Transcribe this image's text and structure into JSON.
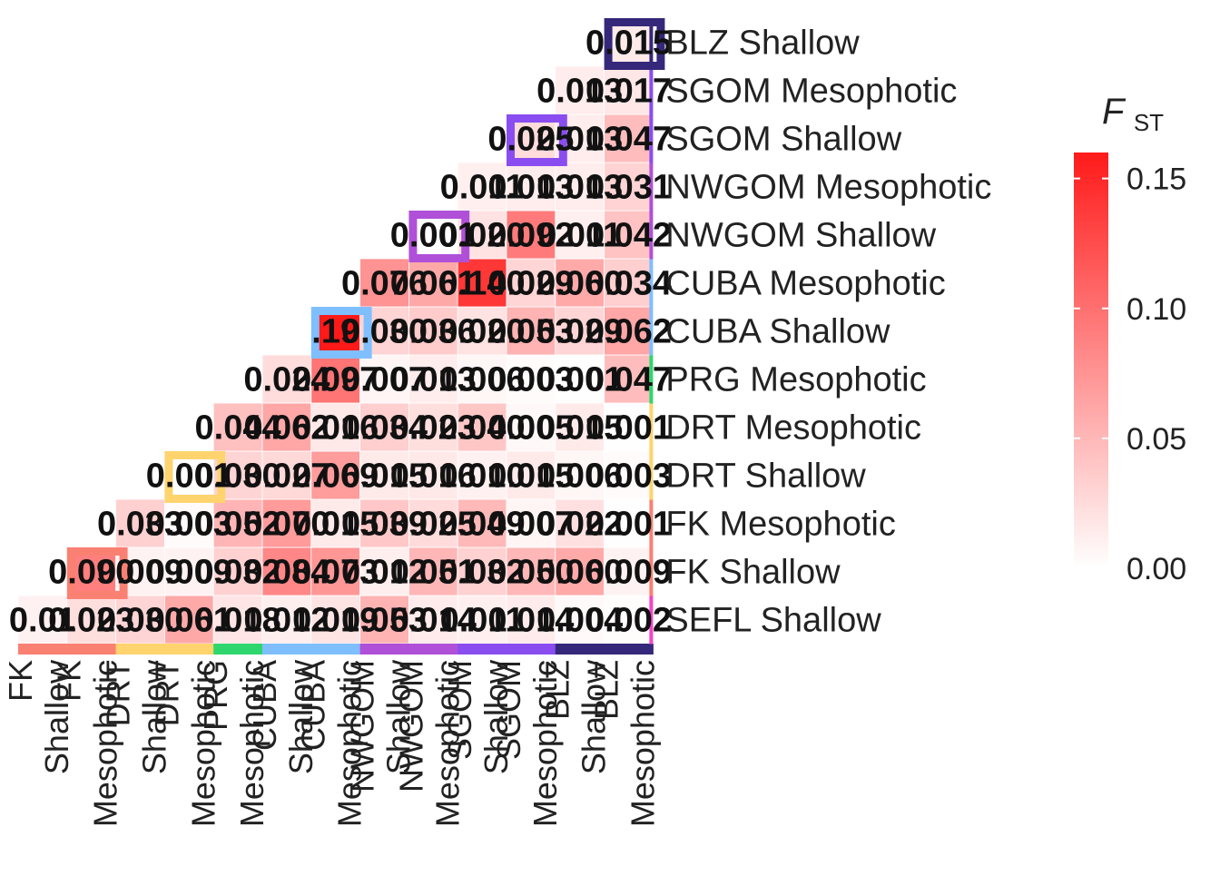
{
  "chart_data": {
    "type": "heatmap",
    "populations": [
      "SEFL Shallow",
      "FK Shallow",
      "FK Mesophotic",
      "DRT Shallow",
      "DRT Mesophotic",
      "PRG Mesophotic",
      "CUBA Shallow",
      "CUBA Mesophotic",
      "NWGOM Shallow",
      "NWGOM Mesophotic",
      "SGOM Shallow",
      "SGOM Mesophotic",
      "BLZ Shallow"
    ],
    "x_tick_labels": [
      [
        "FK",
        "Shallow"
      ],
      [
        "FK",
        "Mesophotic"
      ],
      [
        "DRT",
        "Shallow"
      ],
      [
        "DRT",
        "Mesophotic"
      ],
      [
        "PRG",
        "Mesophotic"
      ],
      [
        "CUBA",
        "Shallow"
      ],
      [
        "CUBA",
        "Mesophotic"
      ],
      [
        "NWGOM",
        "Shallow"
      ],
      [
        "NWGOM",
        "Mesophotic"
      ],
      [
        "SGOM",
        "Shallow"
      ],
      [
        "SGOM",
        "Mesophotic"
      ],
      [
        "BLZ",
        "Shallow"
      ],
      [
        "BLZ",
        "Mesophotic"
      ]
    ],
    "y_tick_labels": [
      "SEFL Shallow",
      "FK Shallow",
      "FK Mesophotic",
      "DRT Shallow",
      "DRT Mesophotic",
      "PRG Mesophotic",
      "CUBA Shallow",
      "CUBA Mesophotic",
      "NWGOM Shallow",
      "NWGOM Mesophotic",
      "SGOM Shallow",
      "SGOM Mesophotic",
      "BLZ Shallow"
    ],
    "values": [
      [
        0.01,
        0.023,
        0.03,
        0.061,
        0.018,
        0.012,
        0.019,
        0.053,
        0.014,
        0.011,
        0.014,
        0.004,
        0.002
      ],
      [
        null,
        0.09,
        0.009,
        0.009,
        0.032,
        0.084,
        0.073,
        0.012,
        0.051,
        0.032,
        0.05,
        0.06,
        0.009
      ],
      [
        null,
        null,
        0.033,
        0.003,
        0.052,
        0.07,
        0.015,
        0.039,
        0.025,
        0.049,
        0.007,
        0.022,
        0.001
      ],
      [
        null,
        null,
        null,
        0.001,
        0.03,
        0.027,
        0.069,
        0.015,
        0.016,
        0.01,
        0.015,
        0.006,
        0.003
      ],
      [
        null,
        null,
        null,
        null,
        0.044,
        0.062,
        0.016,
        0.034,
        0.023,
        0.04,
        0.005,
        0.015,
        0.001
      ],
      [
        null,
        null,
        null,
        null,
        null,
        0.024,
        0.097,
        0.007,
        0.013,
        0.006,
        0.003,
        0.001,
        0.047
      ],
      [
        null,
        null,
        null,
        null,
        null,
        null,
        0.19,
        0.03,
        0.036,
        0.02,
        0.053,
        0.029,
        0.062
      ],
      [
        null,
        null,
        null,
        null,
        null,
        null,
        null,
        0.076,
        0.061,
        0.14,
        0.029,
        0.06,
        0.034
      ],
      [
        null,
        null,
        null,
        null,
        null,
        null,
        null,
        null,
        0.001,
        0.02,
        0.092,
        0.011,
        0.042
      ],
      [
        null,
        null,
        null,
        null,
        null,
        null,
        null,
        null,
        null,
        0.011,
        0.013,
        0.013,
        0.031
      ],
      [
        null,
        null,
        null,
        null,
        null,
        null,
        null,
        null,
        null,
        null,
        0.025,
        0.013,
        0.047
      ],
      [
        null,
        null,
        null,
        null,
        null,
        null,
        null,
        null,
        null,
        null,
        null,
        0.013,
        0.017
      ],
      [
        null,
        null,
        null,
        null,
        null,
        null,
        null,
        null,
        null,
        null,
        null,
        null,
        0.015
      ]
    ],
    "cell_labels": [
      [
        "0.01",
        "0.023",
        "0.030",
        "0.061",
        "0.018",
        "0.012",
        "0.019",
        "0.053",
        "0.014",
        "0.011",
        "0.014",
        "0.004",
        "0.002"
      ],
      [
        null,
        "0.090",
        "0.009",
        "0.009",
        "0.032",
        "0.084",
        "0.073",
        "0.012",
        "0.051",
        "0.032",
        "0.050",
        "0.060",
        "0.009"
      ],
      [
        null,
        null,
        "0.033",
        "0.003",
        "0.052",
        "0.070",
        "0.015",
        "0.039",
        "0.025",
        "0.049",
        "0.007",
        "0.022",
        "0.001"
      ],
      [
        null,
        null,
        null,
        "0.001",
        "0.030",
        "0.027",
        "0.069",
        "0.015",
        "0.016",
        "0.010",
        "0.015",
        "0.006",
        "0.003"
      ],
      [
        null,
        null,
        null,
        null,
        "0.044",
        "0.062",
        "0.016",
        "0.034",
        "0.023",
        "0.040",
        "0.005",
        "0.015",
        "0.001"
      ],
      [
        null,
        null,
        null,
        null,
        null,
        "0.024",
        "0.097",
        "0.007",
        "0.013",
        "0.006",
        "0.003",
        "0.001",
        "0.047"
      ],
      [
        null,
        null,
        null,
        null,
        null,
        null,
        ".19",
        "0.030",
        "0.036",
        "0.020",
        "0.053",
        "0.029",
        "0.062"
      ],
      [
        null,
        null,
        null,
        null,
        null,
        null,
        null,
        "0.076",
        "0.061",
        "0.140",
        "0.029",
        "0.060",
        "0.034"
      ],
      [
        null,
        null,
        null,
        null,
        null,
        null,
        null,
        null,
        "0.001",
        "0.020",
        "0.092",
        "0.011",
        "0.042"
      ],
      [
        null,
        null,
        null,
        null,
        null,
        null,
        null,
        null,
        null,
        "0.011",
        "0.013",
        "0.013",
        "0.031"
      ],
      [
        null,
        null,
        null,
        null,
        null,
        null,
        null,
        null,
        null,
        null,
        "0.025",
        "0.013",
        "0.047"
      ],
      [
        null,
        null,
        null,
        null,
        null,
        null,
        null,
        null,
        null,
        null,
        null,
        "0.013",
        "0.017"
      ],
      [
        null,
        null,
        null,
        null,
        null,
        null,
        null,
        null,
        null,
        null,
        null,
        null,
        "0.015"
      ]
    ],
    "highlighted_cells": [
      {
        "row": 1,
        "col": 1,
        "color": "#FA8072"
      },
      {
        "row": 3,
        "col": 3,
        "color": "#FFD36E"
      },
      {
        "row": 6,
        "col": 6,
        "color": "#7FBFFF"
      },
      {
        "row": 8,
        "col": 8,
        "color": "#B050D8"
      },
      {
        "row": 10,
        "col": 10,
        "color": "#8A4DF0"
      },
      {
        "row": 12,
        "col": 12,
        "color": "#35287A"
      }
    ],
    "group_colors": [
      {
        "name": "SEFL",
        "color": "#F542C8"
      },
      {
        "name": "FK",
        "color": "#FA8072"
      },
      {
        "name": "DRT",
        "color": "#FFD36E"
      },
      {
        "name": "PRG",
        "color": "#2FD66E"
      },
      {
        "name": "CUBA",
        "color": "#7FBFFF"
      },
      {
        "name": "NWGOM",
        "color": "#B050D8"
      },
      {
        "name": "SGOM",
        "color": "#8A4DF0"
      },
      {
        "name": "BLZ",
        "color": "#35287A"
      }
    ],
    "x_group_index": [
      1,
      1,
      2,
      2,
      3,
      4,
      4,
      5,
      5,
      6,
      6,
      7,
      7
    ],
    "y_group_index": [
      0,
      1,
      1,
      2,
      2,
      3,
      4,
      4,
      5,
      5,
      6,
      6,
      7
    ],
    "colorbar": {
      "title_main": "F",
      "title_sub": "ST",
      "range": [
        0,
        0.16
      ],
      "ticks": [
        0.0,
        0.05,
        0.1,
        0.15
      ],
      "tick_labels": [
        "0.00",
        "0.05",
        "0.10",
        "0.15"
      ],
      "low_color": "#FFFFFF",
      "high_color": "#FF1A1A"
    }
  }
}
